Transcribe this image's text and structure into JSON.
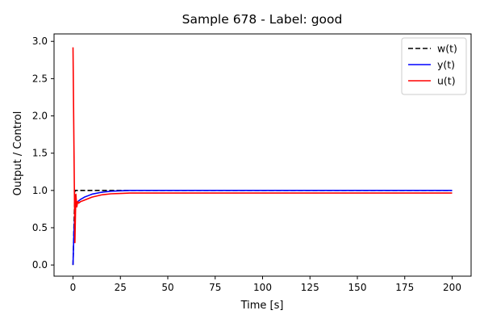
{
  "chart_data": {
    "type": "line",
    "title": "Sample 678 - Label: good",
    "xlabel": "Time [s]",
    "ylabel": "Output / Control",
    "xlim": [
      -10,
      210
    ],
    "ylim": [
      -0.15,
      3.1
    ],
    "xticks": [
      0,
      25,
      50,
      75,
      100,
      125,
      150,
      175,
      200
    ],
    "xtick_labels": [
      "0",
      "25",
      "50",
      "75",
      "100",
      "125",
      "150",
      "175",
      "200"
    ],
    "yticks": [
      0.0,
      0.5,
      1.0,
      1.5,
      2.0,
      2.5,
      3.0
    ],
    "ytick_labels": [
      "0.0",
      "0.5",
      "1.0",
      "1.5",
      "2.0",
      "2.5",
      "3.0"
    ],
    "grid": false,
    "legend_position": "top-right",
    "series": [
      {
        "name": "w(t)",
        "color": "#000000",
        "dashed": true,
        "x": [
          0,
          1,
          200
        ],
        "y": [
          0.0,
          1.0,
          1.0
        ]
      },
      {
        "name": "y(t)",
        "color": "#0000ff",
        "dashed": false,
        "x": [
          0,
          0.5,
          1,
          1.5,
          2,
          3,
          4,
          6,
          8,
          10,
          15,
          20,
          25,
          30,
          40,
          50,
          100,
          150,
          200
        ],
        "y": [
          0.0,
          0.45,
          0.7,
          0.8,
          0.84,
          0.86,
          0.88,
          0.91,
          0.93,
          0.95,
          0.975,
          0.99,
          0.995,
          1.0,
          1.0,
          1.0,
          1.0,
          1.0,
          1.0
        ]
      },
      {
        "name": "u(t)",
        "color": "#ff0000",
        "dashed": false,
        "x": [
          0,
          0.5,
          1,
          1.5,
          2,
          2.5,
          3,
          4,
          6,
          8,
          10,
          15,
          20,
          25,
          30,
          40,
          50,
          100,
          150,
          200
        ],
        "y": [
          2.92,
          1.6,
          0.3,
          0.95,
          0.78,
          0.85,
          0.83,
          0.85,
          0.87,
          0.89,
          0.91,
          0.94,
          0.955,
          0.96,
          0.965,
          0.965,
          0.965,
          0.965,
          0.965,
          0.965
        ]
      }
    ]
  }
}
